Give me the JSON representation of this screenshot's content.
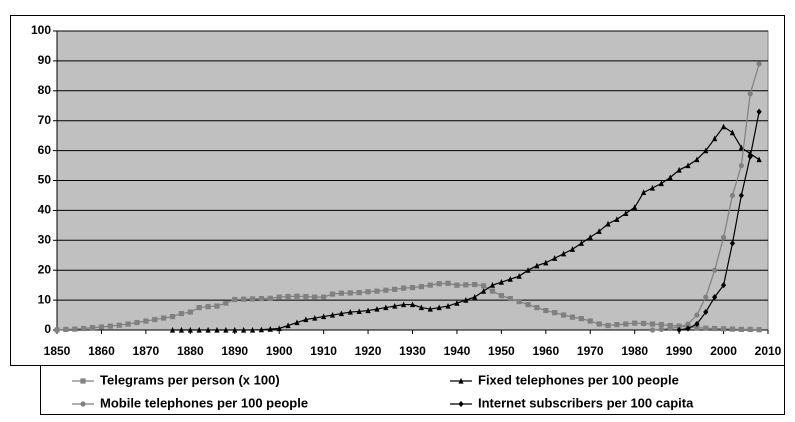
{
  "chart_data": {
    "type": "line",
    "x": [
      1850,
      1852,
      1854,
      1856,
      1858,
      1860,
      1862,
      1864,
      1866,
      1868,
      1870,
      1872,
      1874,
      1876,
      1878,
      1880,
      1882,
      1884,
      1886,
      1888,
      1890,
      1892,
      1894,
      1896,
      1898,
      1900,
      1902,
      1904,
      1906,
      1908,
      1910,
      1912,
      1914,
      1916,
      1918,
      1920,
      1922,
      1924,
      1926,
      1928,
      1930,
      1932,
      1934,
      1936,
      1938,
      1940,
      1942,
      1944,
      1946,
      1948,
      1950,
      1952,
      1954,
      1956,
      1958,
      1960,
      1962,
      1964,
      1966,
      1968,
      1970,
      1972,
      1974,
      1976,
      1978,
      1980,
      1982,
      1984,
      1986,
      1988,
      1990,
      1992,
      1994,
      1996,
      1998,
      2000,
      2002,
      2004,
      2006,
      2008
    ],
    "series": [
      {
        "name": "Telegrams per person (x 100)",
        "color": "#808080",
        "marker": "square",
        "values": [
          0,
          0.2,
          0.3,
          0.5,
          0.8,
          1,
          1.3,
          1.6,
          2,
          2.5,
          3,
          3.5,
          4,
          4.5,
          5.5,
          6,
          7.5,
          7.8,
          8,
          9,
          10.2,
          10.3,
          10.4,
          10.5,
          10.6,
          11,
          11.2,
          11.3,
          11.2,
          11,
          11,
          12,
          12.3,
          12.4,
          12.5,
          12.8,
          13,
          13.3,
          13.6,
          14,
          14.2,
          14.5,
          15,
          15.5,
          15.6,
          15,
          15.1,
          15.2,
          14.8,
          13,
          11.5,
          10.5,
          9.5,
          8.5,
          7.5,
          6.5,
          5.8,
          5,
          4.3,
          3.8,
          3,
          2,
          1.5,
          1.8,
          2,
          2.3,
          2.2,
          2,
          1.8,
          1.5,
          1.3,
          1,
          0.8,
          0.6,
          0.5,
          0.4,
          0.3,
          0.2,
          0.2,
          0.1
        ]
      },
      {
        "name": "Fixed telephones per 100 people",
        "color": "#000000",
        "marker": "triangle",
        "values": [
          null,
          null,
          null,
          null,
          null,
          null,
          null,
          null,
          null,
          null,
          null,
          null,
          null,
          0,
          0,
          0,
          0,
          0,
          0,
          0,
          0,
          0,
          0,
          0.1,
          0.3,
          0.5,
          1.5,
          2.5,
          3.5,
          4,
          4.5,
          5,
          5.5,
          6,
          6.2,
          6.5,
          7,
          7.5,
          8,
          8.5,
          8.5,
          7.5,
          7,
          7.5,
          8,
          9,
          10,
          11,
          13,
          15,
          16,
          17,
          18,
          20,
          21.5,
          22.5,
          24,
          25.5,
          27,
          29,
          31,
          33,
          35.5,
          37,
          39,
          41,
          46,
          47.5,
          49,
          51,
          53.5,
          55,
          57,
          60,
          64,
          68,
          66,
          61,
          59,
          57
        ]
      },
      {
        "name": "Mobile telephones per 100 people",
        "color": "#808080",
        "marker": "circle",
        "values": [
          null,
          null,
          null,
          null,
          null,
          null,
          null,
          null,
          null,
          null,
          null,
          null,
          null,
          null,
          null,
          null,
          null,
          null,
          null,
          null,
          null,
          null,
          null,
          null,
          null,
          null,
          null,
          null,
          null,
          null,
          null,
          null,
          null,
          null,
          null,
          null,
          null,
          null,
          null,
          null,
          null,
          null,
          null,
          null,
          null,
          null,
          null,
          null,
          null,
          null,
          null,
          null,
          null,
          null,
          null,
          null,
          null,
          null,
          null,
          null,
          null,
          null,
          null,
          null,
          null,
          null,
          null,
          0,
          0.2,
          0.5,
          1,
          2,
          5,
          11,
          20,
          31,
          45,
          55,
          79,
          89
        ]
      },
      {
        "name": "Internet subscribers per 100 capita",
        "color": "#000000",
        "marker": "diamond",
        "values": [
          null,
          null,
          null,
          null,
          null,
          null,
          null,
          null,
          null,
          null,
          null,
          null,
          null,
          null,
          null,
          null,
          null,
          null,
          null,
          null,
          null,
          null,
          null,
          null,
          null,
          null,
          null,
          null,
          null,
          null,
          null,
          null,
          null,
          null,
          null,
          null,
          null,
          null,
          null,
          null,
          null,
          null,
          null,
          null,
          null,
          null,
          null,
          null,
          null,
          null,
          null,
          null,
          null,
          null,
          null,
          null,
          null,
          null,
          null,
          null,
          null,
          null,
          null,
          null,
          null,
          null,
          null,
          null,
          null,
          null,
          0,
          0.5,
          2,
          6,
          11,
          15,
          29,
          45,
          58,
          73
        ]
      }
    ],
    "xlim": [
      1850,
      2010
    ],
    "xticks": [
      1850,
      1860,
      1870,
      1880,
      1890,
      1900,
      1910,
      1920,
      1930,
      1940,
      1950,
      1960,
      1970,
      1980,
      1990,
      2000,
      2010
    ],
    "ylim": [
      0,
      100
    ],
    "yticks": [
      0,
      10,
      20,
      30,
      40,
      50,
      60,
      70,
      80,
      90,
      100
    ],
    "grid": true,
    "plot_background": "#c0c0c0"
  }
}
